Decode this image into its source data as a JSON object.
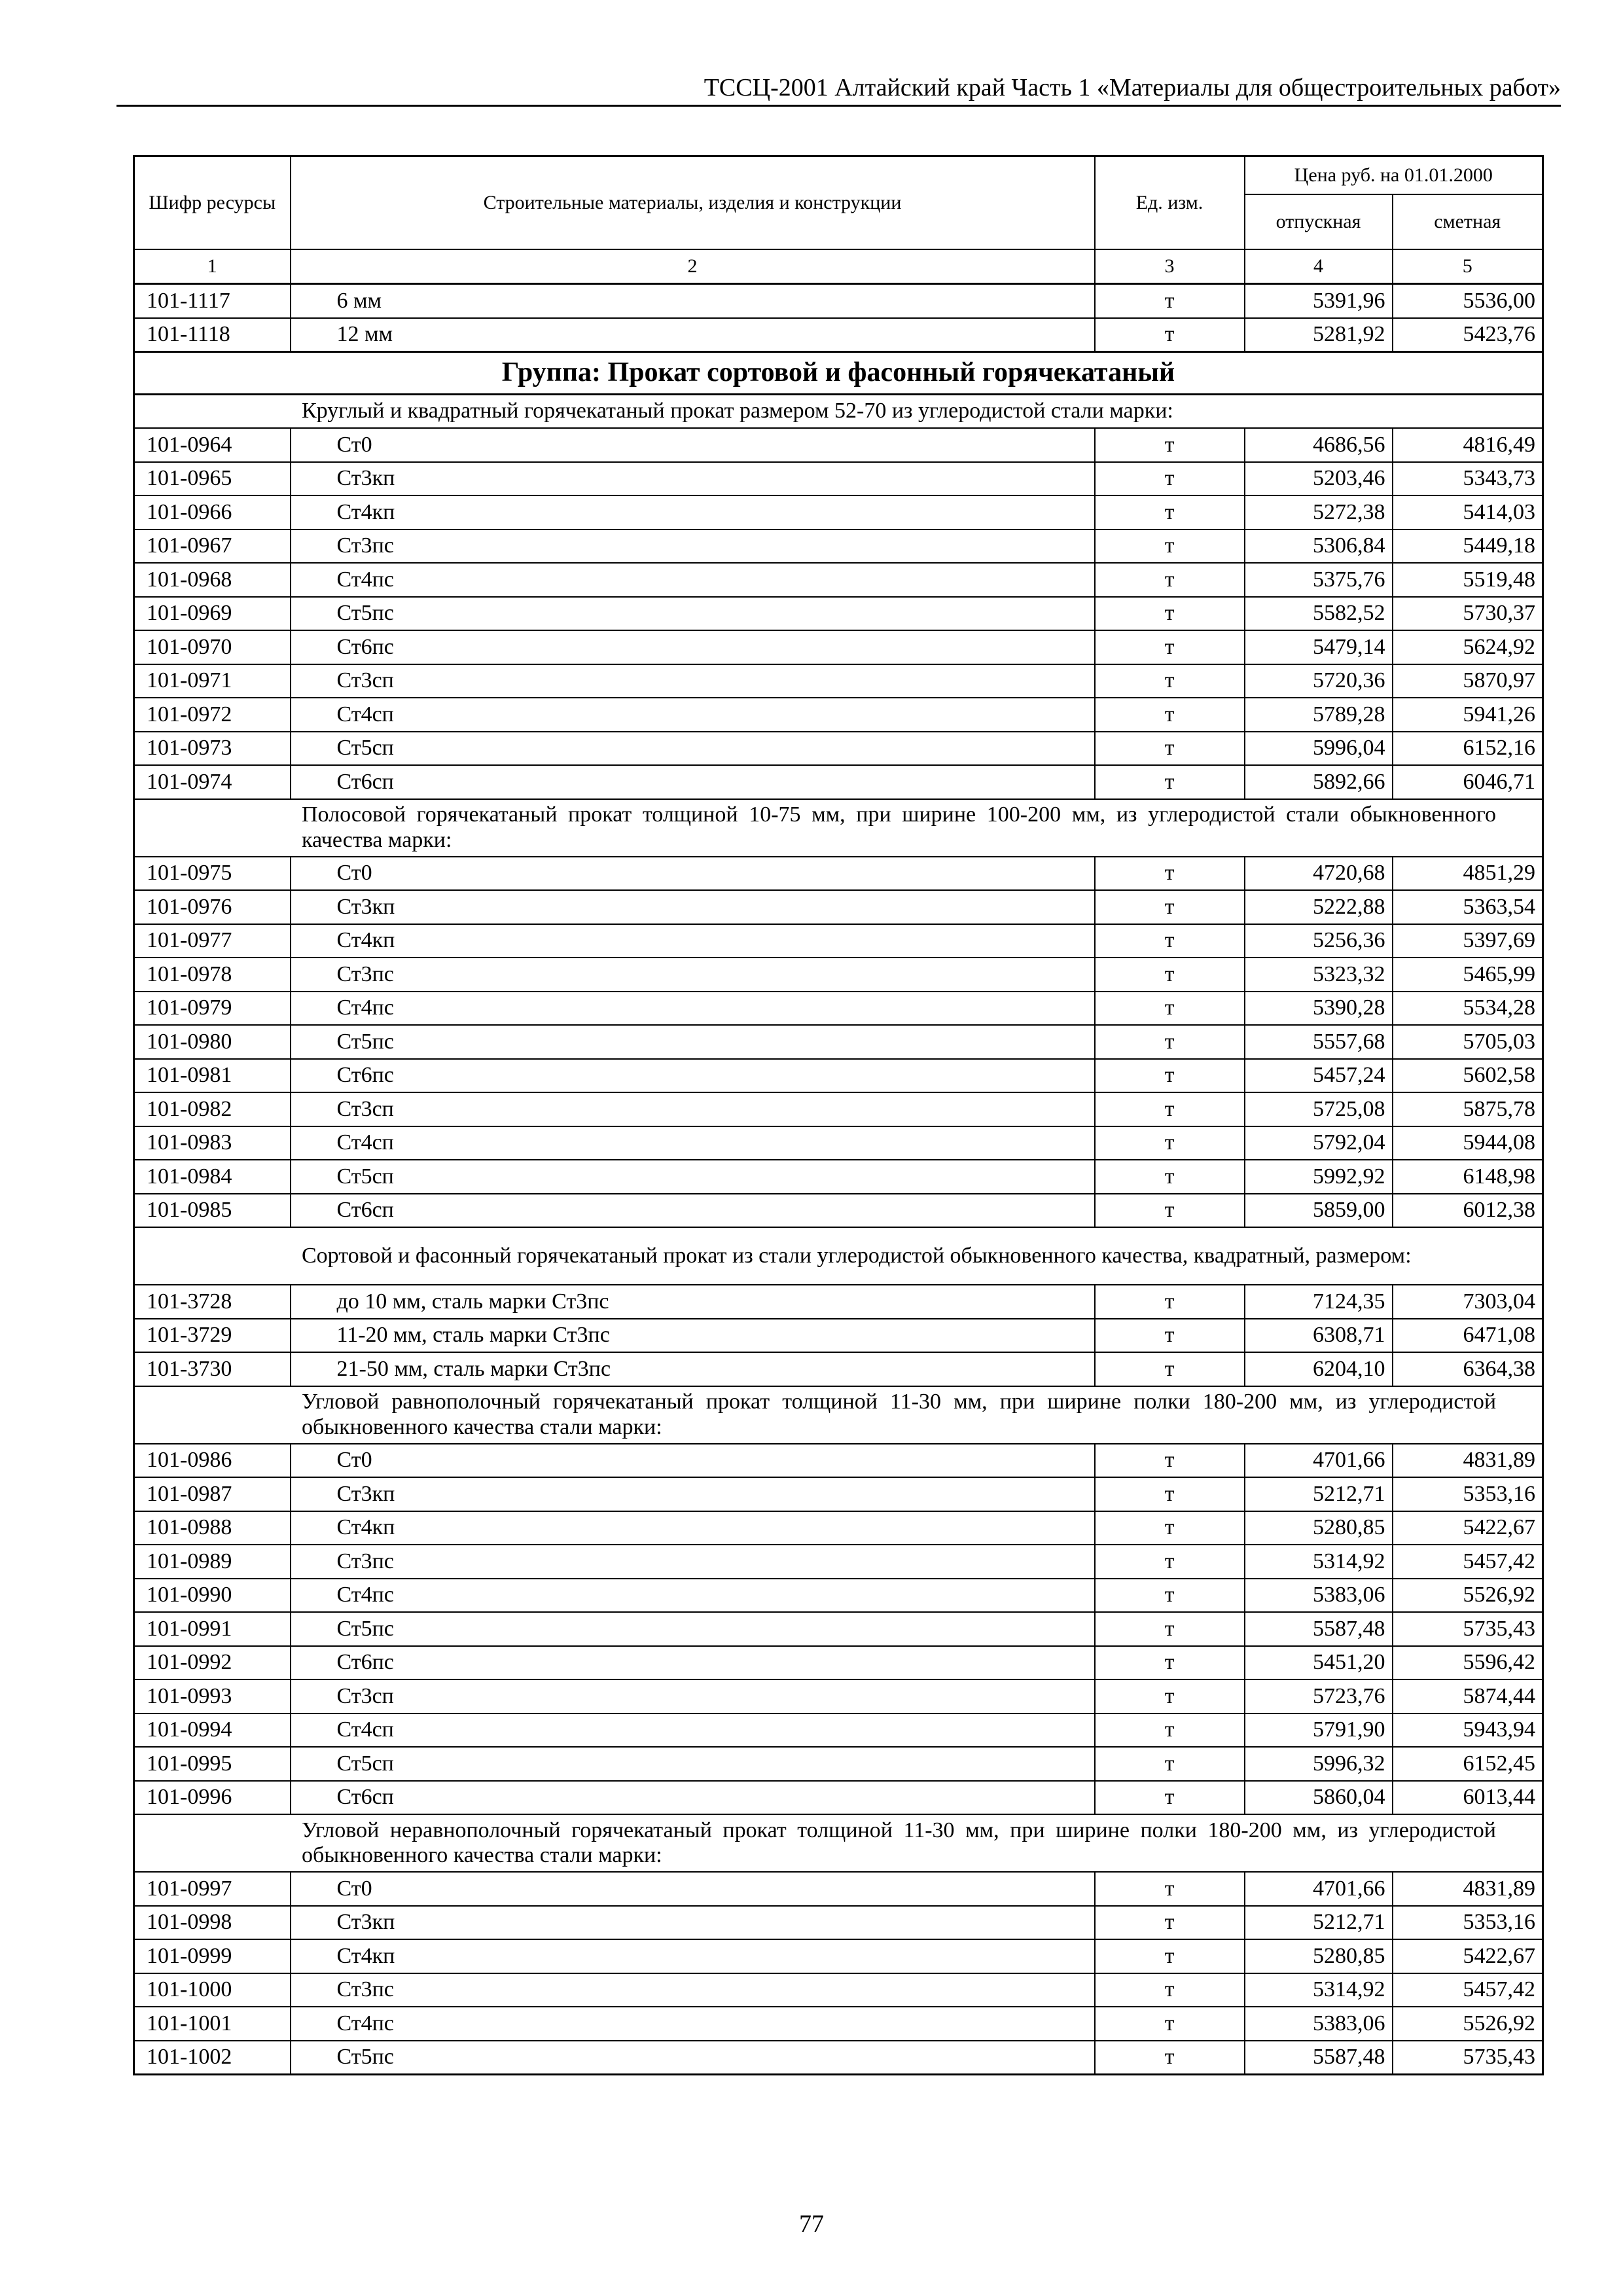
{
  "running_head": "ТССЦ-2001 Алтайский край Часть 1 «Материалы для общестроительных работ»",
  "table": {
    "headers": {
      "code": "Шифр ресурсы",
      "name": "Строительные материалы, изделия и конструкции",
      "unit": "Ед. изм.",
      "price": "Цена руб. на 01.01.2000",
      "release": "отпускная",
      "estimate": "сметная"
    },
    "column_numbers": [
      "1",
      "2",
      "3",
      "4",
      "5"
    ],
    "top_rows": [
      {
        "code": "101-1117",
        "name": "6 мм",
        "unit": "т",
        "release": "5391,96",
        "estimate": "5536,00"
      },
      {
        "code": "101-1118",
        "name": "12 мм",
        "unit": "т",
        "release": "5281,92",
        "estimate": "5423,76"
      }
    ],
    "group_title": "Группа: Прокат сортовой и фасонный горячекатаный",
    "sections": [
      {
        "title": "Круглый и квадратный горячекатаный прокат размером 52-70 из углеродистой стали марки:",
        "rows": [
          {
            "code": "101-0964",
            "name": "Ст0",
            "unit": "т",
            "release": "4686,56",
            "estimate": "4816,49"
          },
          {
            "code": "101-0965",
            "name": "Ст3кп",
            "unit": "т",
            "release": "5203,46",
            "estimate": "5343,73"
          },
          {
            "code": "101-0966",
            "name": "Ст4кп",
            "unit": "т",
            "release": "5272,38",
            "estimate": "5414,03"
          },
          {
            "code": "101-0967",
            "name": "Ст3пс",
            "unit": "т",
            "release": "5306,84",
            "estimate": "5449,18"
          },
          {
            "code": "101-0968",
            "name": "Ст4пс",
            "unit": "т",
            "release": "5375,76",
            "estimate": "5519,48"
          },
          {
            "code": "101-0969",
            "name": "Ст5пс",
            "unit": "т",
            "release": "5582,52",
            "estimate": "5730,37"
          },
          {
            "code": "101-0970",
            "name": "Ст6пс",
            "unit": "т",
            "release": "5479,14",
            "estimate": "5624,92"
          },
          {
            "code": "101-0971",
            "name": "Ст3сп",
            "unit": "т",
            "release": "5720,36",
            "estimate": "5870,97"
          },
          {
            "code": "101-0972",
            "name": "Ст4сп",
            "unit": "т",
            "release": "5789,28",
            "estimate": "5941,26"
          },
          {
            "code": "101-0973",
            "name": "Ст5сп",
            "unit": "т",
            "release": "5996,04",
            "estimate": "6152,16"
          },
          {
            "code": "101-0974",
            "name": "Ст6сп",
            "unit": "т",
            "release": "5892,66",
            "estimate": "6046,71"
          }
        ]
      },
      {
        "title": "Полосовой горячекатаный прокат толщиной 10-75 мм, при ширине 100-200 мм, из углеродистой стали обыкновенного качества марки:",
        "rows": [
          {
            "code": "101-0975",
            "name": "Ст0",
            "unit": "т",
            "release": "4720,68",
            "estimate": "4851,29"
          },
          {
            "code": "101-0976",
            "name": "Ст3кп",
            "unit": "т",
            "release": "5222,88",
            "estimate": "5363,54"
          },
          {
            "code": "101-0977",
            "name": "Ст4кп",
            "unit": "т",
            "release": "5256,36",
            "estimate": "5397,69"
          },
          {
            "code": "101-0978",
            "name": "Ст3пс",
            "unit": "т",
            "release": "5323,32",
            "estimate": "5465,99"
          },
          {
            "code": "101-0979",
            "name": "Ст4пс",
            "unit": "т",
            "release": "5390,28",
            "estimate": "5534,28"
          },
          {
            "code": "101-0980",
            "name": "Ст5пс",
            "unit": "т",
            "release": "5557,68",
            "estimate": "5705,03"
          },
          {
            "code": "101-0981",
            "name": "Ст6пс",
            "unit": "т",
            "release": "5457,24",
            "estimate": "5602,58"
          },
          {
            "code": "101-0982",
            "name": "Ст3сп",
            "unit": "т",
            "release": "5725,08",
            "estimate": "5875,78"
          },
          {
            "code": "101-0983",
            "name": "Ст4сп",
            "unit": "т",
            "release": "5792,04",
            "estimate": "5944,08"
          },
          {
            "code": "101-0984",
            "name": "Ст5сп",
            "unit": "т",
            "release": "5992,92",
            "estimate": "6148,98"
          },
          {
            "code": "101-0985",
            "name": "Ст6сп",
            "unit": "т",
            "release": "5859,00",
            "estimate": "6012,38"
          }
        ]
      },
      {
        "title": "Сортовой и фасонный горячекатаный прокат из стали углеродистой обыкновенного качества, квадратный, размером:",
        "rows": [
          {
            "code": "101-3728",
            "name": "до 10 мм, сталь марки Ст3пс",
            "unit": "т",
            "release": "7124,35",
            "estimate": "7303,04"
          },
          {
            "code": "101-3729",
            "name": "11-20 мм, сталь марки Ст3пс",
            "unit": "т",
            "release": "6308,71",
            "estimate": "6471,08"
          },
          {
            "code": "101-3730",
            "name": "21-50 мм, сталь марки Ст3пс",
            "unit": "т",
            "release": "6204,10",
            "estimate": "6364,38"
          }
        ]
      },
      {
        "title": "Угловой равнополочный горячекатаный прокат толщиной 11-30 мм, при ширине полки 180-200 мм, из углеродистой обыкновенного качества стали марки:",
        "rows": [
          {
            "code": "101-0986",
            "name": "Ст0",
            "unit": "т",
            "release": "4701,66",
            "estimate": "4831,89"
          },
          {
            "code": "101-0987",
            "name": "Ст3кп",
            "unit": "т",
            "release": "5212,71",
            "estimate": "5353,16"
          },
          {
            "code": "101-0988",
            "name": "Ст4кп",
            "unit": "т",
            "release": "5280,85",
            "estimate": "5422,67"
          },
          {
            "code": "101-0989",
            "name": "Ст3пс",
            "unit": "т",
            "release": "5314,92",
            "estimate": "5457,42"
          },
          {
            "code": "101-0990",
            "name": "Ст4пс",
            "unit": "т",
            "release": "5383,06",
            "estimate": "5526,92"
          },
          {
            "code": "101-0991",
            "name": "Ст5пс",
            "unit": "т",
            "release": "5587,48",
            "estimate": "5735,43"
          },
          {
            "code": "101-0992",
            "name": "Ст6пс",
            "unit": "т",
            "release": "5451,20",
            "estimate": "5596,42"
          },
          {
            "code": "101-0993",
            "name": "Ст3сп",
            "unit": "т",
            "release": "5723,76",
            "estimate": "5874,44"
          },
          {
            "code": "101-0994",
            "name": "Ст4сп",
            "unit": "т",
            "release": "5791,90",
            "estimate": "5943,94"
          },
          {
            "code": "101-0995",
            "name": "Ст5сп",
            "unit": "т",
            "release": "5996,32",
            "estimate": "6152,45"
          },
          {
            "code": "101-0996",
            "name": "Ст6сп",
            "unit": "т",
            "release": "5860,04",
            "estimate": "6013,44"
          }
        ]
      },
      {
        "title": "Угловой неравнополочный горячекатаный прокат толщиной 11-30 мм, при ширине полки 180-200 мм, из углеродистой обыкновенного качества стали марки:",
        "rows": [
          {
            "code": "101-0997",
            "name": "Ст0",
            "unit": "т",
            "release": "4701,66",
            "estimate": "4831,89"
          },
          {
            "code": "101-0998",
            "name": "Ст3кп",
            "unit": "т",
            "release": "5212,71",
            "estimate": "5353,16"
          },
          {
            "code": "101-0999",
            "name": "Ст4кп",
            "unit": "т",
            "release": "5280,85",
            "estimate": "5422,67"
          },
          {
            "code": "101-1000",
            "name": "Ст3пс",
            "unit": "т",
            "release": "5314,92",
            "estimate": "5457,42"
          },
          {
            "code": "101-1001",
            "name": "Ст4пс",
            "unit": "т",
            "release": "5383,06",
            "estimate": "5526,92"
          },
          {
            "code": "101-1002",
            "name": "Ст5пс",
            "unit": "т",
            "release": "5587,48",
            "estimate": "5735,43"
          }
        ]
      }
    ]
  },
  "page_number": "77"
}
